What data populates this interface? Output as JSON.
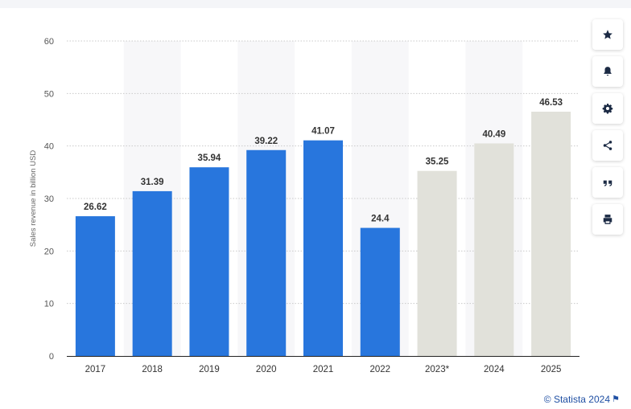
{
  "chart_data": {
    "type": "bar",
    "categories": [
      "2017",
      "2018",
      "2019",
      "2020",
      "2021",
      "2022",
      "2023*",
      "2024",
      "2025"
    ],
    "values": [
      26.62,
      31.39,
      35.94,
      39.22,
      41.07,
      24.4,
      35.25,
      40.49,
      46.53
    ],
    "value_labels": [
      "26.62",
      "31.39",
      "35.94",
      "39.22",
      "41.07",
      "24.4",
      "35.25",
      "40.49",
      "46.53"
    ],
    "forecast_from_index": 6,
    "ylabel": "Sales revenue in billion USD",
    "xlabel": "",
    "ylim": [
      0,
      60
    ],
    "yticks": [
      0,
      10,
      20,
      30,
      40,
      50,
      60
    ],
    "grid": true,
    "colors": {
      "actual": "#2876dd",
      "forecast": "#e1e1da",
      "band": "#f7f7f9",
      "grid": "#c9c9c9"
    }
  },
  "toolbar": {
    "buttons": [
      {
        "name": "favorite-button",
        "icon": "star-icon"
      },
      {
        "name": "notification-button",
        "icon": "bell-icon"
      },
      {
        "name": "settings-button",
        "icon": "gear-icon"
      },
      {
        "name": "share-button",
        "icon": "share-icon"
      },
      {
        "name": "cite-button",
        "icon": "quote-icon"
      },
      {
        "name": "print-button",
        "icon": "printer-icon"
      }
    ]
  },
  "footer": {
    "credit": "© Statista 2024",
    "flag_icon": "flag-icon"
  }
}
